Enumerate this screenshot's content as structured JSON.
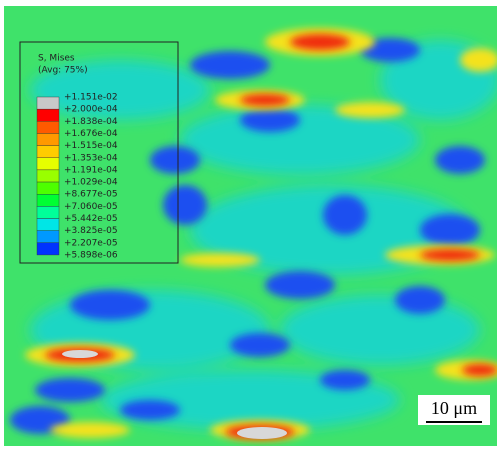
{
  "legend": {
    "title": "S, Mises",
    "subtitle": "(Avg: 75%)",
    "labels": [
      "+1.151e-02",
      "+2.000e-04",
      "+1.838e-04",
      "+1.676e-04",
      "+1.515e-04",
      "+1.353e-04",
      "+1.191e-04",
      "+1.029e-04",
      "+8.677e-05",
      "+7.060e-05",
      "+5.442e-05",
      "+3.825e-05",
      "+2.207e-05",
      "+5.898e-06"
    ],
    "colors": [
      "#c8c8c8",
      "#ff0000",
      "#ff5a00",
      "#ff9900",
      "#ffcc00",
      "#e6ff00",
      "#99ff00",
      "#4dff00",
      "#00ff33",
      "#00ff99",
      "#00e6e6",
      "#0099ff",
      "#0033ff"
    ]
  },
  "scale_bar": {
    "label": "10 μm"
  }
}
